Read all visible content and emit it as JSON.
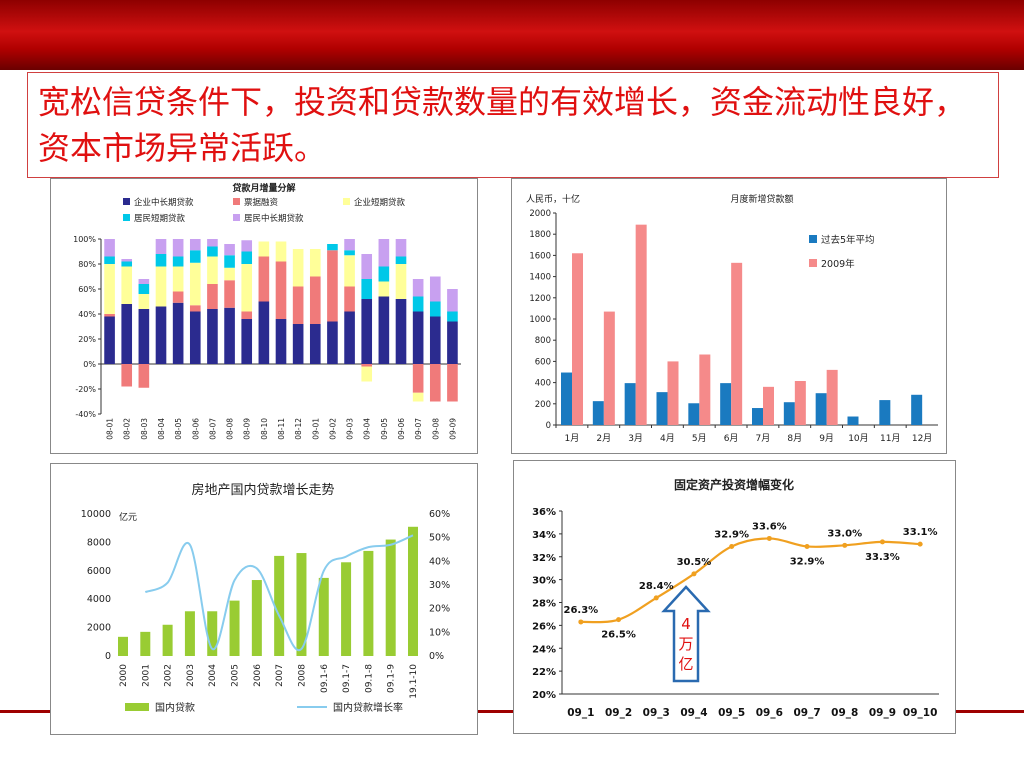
{
  "slide": {
    "title": "宽松信贷条件下，投资和贷款数量的有效增长，资金流动性良好，资本市场异常活跃。",
    "annotation": {
      "num": "4",
      "unit1": "万",
      "unit2": "亿"
    }
  },
  "colors": {
    "banner": "#b00000",
    "title": "#e01010"
  },
  "chart_data": [
    {
      "id": "loan-composition",
      "type": "bar",
      "stacked": true,
      "title": "贷款月增量分解",
      "ylim": [
        -40,
        100
      ],
      "y_ticks": [
        "-40%",
        "-20%",
        "0%",
        "20%",
        "40%",
        "60%",
        "80%",
        "100%"
      ],
      "categories": [
        "08-01",
        "08-02",
        "08-03",
        "08-04",
        "08-05",
        "08-06",
        "08-07",
        "08-08",
        "08-09",
        "08-10",
        "08-11",
        "08-12",
        "09-01",
        "09-02",
        "09-03",
        "09-04",
        "09-05",
        "09-06",
        "09-07",
        "09-08",
        "09-09"
      ],
      "legend_position": "top",
      "series": [
        {
          "name": "企业中长期贷款",
          "color": "#2b2b8f",
          "values": [
            38,
            48,
            44,
            46,
            49,
            42,
            44,
            45,
            36,
            50,
            36,
            32,
            32,
            34,
            42,
            52,
            54,
            52,
            42,
            38,
            34
          ]
        },
        {
          "name": "票据融资",
          "color": "#f07a7a",
          "values": [
            2,
            -18,
            -19,
            0,
            9,
            5,
            20,
            22,
            6,
            36,
            46,
            30,
            38,
            57,
            20,
            -2,
            0,
            0,
            -23,
            -30,
            -30
          ]
        },
        {
          "name": "企业短期贷款",
          "color": "#ffff99",
          "values": [
            40,
            30,
            12,
            32,
            20,
            34,
            22,
            10,
            38,
            12,
            16,
            30,
            22,
            0,
            25,
            -12,
            12,
            28,
            -7,
            0,
            0
          ]
        },
        {
          "name": "居民短期贷款",
          "color": "#00c8e8",
          "values": [
            6,
            4,
            8,
            10,
            8,
            10,
            8,
            10,
            10,
            0,
            0,
            0,
            0,
            5,
            4,
            16,
            12,
            6,
            12,
            12,
            8
          ]
        },
        {
          "name": "居民中长期贷款",
          "color": "#c8a0f0",
          "values": [
            14,
            2,
            4,
            12,
            14,
            9,
            6,
            9,
            9,
            0,
            0,
            0,
            0,
            0,
            9,
            20,
            22,
            14,
            14,
            20,
            18
          ]
        }
      ]
    },
    {
      "id": "monthly-new-loans",
      "type": "bar",
      "title": "月度新增贷款额",
      "unit_label": "人民币，十亿",
      "ylim": [
        0,
        2000
      ],
      "y_ticks": [
        "0",
        "200",
        "400",
        "600",
        "800",
        "1000",
        "1200",
        "1400",
        "1600",
        "1800",
        "2000"
      ],
      "categories": [
        "1月",
        "2月",
        "3月",
        "4月",
        "5月",
        "6月",
        "7月",
        "8月",
        "9月",
        "10月",
        "11月",
        "12月"
      ],
      "legend_position": "right",
      "series": [
        {
          "name": "过去5年平均",
          "color": "#1a7ac0",
          "values": [
            495,
            225,
            395,
            310,
            205,
            395,
            160,
            215,
            300,
            80,
            235,
            285
          ]
        },
        {
          "name": "2009年",
          "color": "#f58a8a",
          "values": [
            1620,
            1070,
            1890,
            600,
            665,
            1530,
            360,
            415,
            520,
            null,
            null,
            null
          ]
        }
      ]
    },
    {
      "id": "real-estate-loans",
      "type": "bar",
      "title": "房地产国内贷款增长走势",
      "unit_label": "亿元",
      "ylim": [
        0,
        10000
      ],
      "y_ticks": [
        "0",
        "2000",
        "4000",
        "6000",
        "8000",
        "10000"
      ],
      "y2lim": [
        0,
        60
      ],
      "y2_ticks": [
        "0%",
        "10%",
        "20%",
        "30%",
        "40%",
        "50%",
        "60%"
      ],
      "categories": [
        "2000",
        "2001",
        "2002",
        "2003",
        "2004",
        "2005",
        "2006",
        "2007",
        "2008",
        "09.1-6",
        "09.1-7",
        "09.1-8",
        "09.1-9",
        "19.1-10"
      ],
      "legend_position": "bottom",
      "series": [
        {
          "name": "国内贷款",
          "color": "#99cc33",
          "type": "bar",
          "values": [
            1350,
            1700,
            2200,
            3150,
            3150,
            3900,
            5350,
            7050,
            7250,
            5500,
            6600,
            7400,
            8200,
            9100
          ]
        },
        {
          "name": "国内贷款增长率",
          "color": "#88ccee",
          "type": "line",
          "values": [
            null,
            27,
            31,
            47,
            3,
            32,
            37,
            17,
            3,
            36,
            42,
            46,
            47,
            51
          ]
        }
      ]
    },
    {
      "id": "fixed-asset-investment",
      "type": "line",
      "title": "固定资产投资增幅变化",
      "ylim": [
        20,
        36
      ],
      "y_ticks": [
        "20%",
        "22%",
        "24%",
        "26%",
        "28%",
        "30%",
        "32%",
        "34%",
        "36%"
      ],
      "categories": [
        "09_1",
        "09_2",
        "09_3",
        "09_4",
        "09_5",
        "09_6",
        "09_7",
        "09_8",
        "09_9",
        "09_10"
      ],
      "series": [
        {
          "name": "",
          "color": "#f0a020",
          "values": [
            26.3,
            26.5,
            28.4,
            30.5,
            32.9,
            33.6,
            32.9,
            33.0,
            33.3,
            33.1
          ],
          "labels": [
            "26.3%",
            "26.5%",
            "28.4%",
            "30.5%",
            "32.9%",
            "33.6%",
            "32.9%",
            "33.0%",
            "33.3%",
            "33.1%"
          ]
        }
      ]
    }
  ]
}
